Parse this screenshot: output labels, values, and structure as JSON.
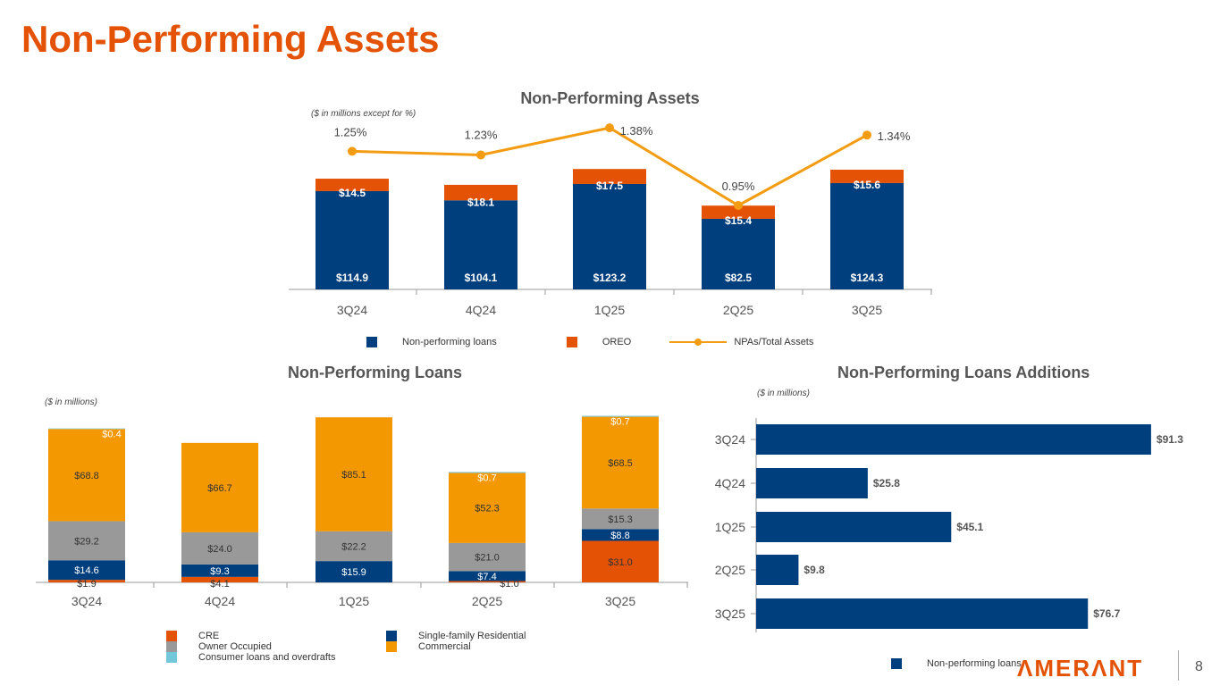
{
  "page_title": "Non-Performing Assets",
  "page_number": "8",
  "logo": "AMERANT",
  "colors": {
    "npl": "#003f7d",
    "oreo": "#e35205",
    "line": "#f39c12",
    "owner": "#999999",
    "commercial": "#f39800",
    "consumer": "#74c6d9",
    "cre": "#e35205",
    "sfr": "#003f7d"
  },
  "chart_data": [
    {
      "type": "bar",
      "title": "Non-Performing Assets",
      "note": "($ in millions except for %)",
      "stacked": true,
      "categories": [
        "3Q24",
        "4Q24",
        "1Q25",
        "2Q25",
        "3Q25"
      ],
      "series": [
        {
          "name": "Non-performing loans",
          "values": [
            114.9,
            104.1,
            123.2,
            82.5,
            124.3
          ],
          "labels": [
            "$114.9",
            "$104.1",
            "$123.2",
            "$82.5",
            "$124.3"
          ]
        },
        {
          "name": "OREO",
          "values": [
            14.5,
            18.1,
            17.5,
            15.4,
            15.6
          ],
          "labels": [
            "$14.5",
            "$18.1",
            "$17.5",
            "$15.4",
            "$15.6"
          ]
        }
      ],
      "line": {
        "name": "NPAs/Total Assets",
        "values": [
          1.25,
          1.23,
          1.38,
          0.95,
          1.34
        ],
        "labels": [
          "1.25%",
          "1.23%",
          "1.38%",
          "0.95%",
          "1.34%"
        ]
      }
    },
    {
      "type": "bar",
      "title": "Non-Performing Loans",
      "note": "($ in millions)",
      "stacked": true,
      "categories": [
        "3Q24",
        "4Q24",
        "1Q25",
        "2Q25",
        "3Q25"
      ],
      "series": [
        {
          "name": "CRE",
          "values": [
            1.9,
            4.1,
            0,
            1.0,
            31.0
          ],
          "labels": [
            "$1.9",
            "$4.1",
            "",
            "$1.0",
            "$31.0"
          ]
        },
        {
          "name": "Single-family Residential",
          "values": [
            14.6,
            9.3,
            15.9,
            7.4,
            8.8
          ],
          "labels": [
            "$14.6",
            "$9.3",
            "$15.9",
            "$7.4",
            "$8.8"
          ]
        },
        {
          "name": "Owner Occupied",
          "values": [
            29.2,
            24.0,
            22.2,
            21.0,
            15.3
          ],
          "labels": [
            "$29.2",
            "$24.0",
            "$22.2",
            "$21.0",
            "$15.3"
          ]
        },
        {
          "name": "Commercial",
          "values": [
            68.8,
            66.7,
            85.1,
            52.3,
            68.5
          ],
          "labels": [
            "$68.8",
            "$66.7",
            "$85.1",
            "$52.3",
            "$68.5"
          ]
        },
        {
          "name": "Consumer loans and overdrafts",
          "values": [
            0.4,
            0,
            0,
            0.7,
            0.7
          ],
          "labels": [
            "$0.4",
            "",
            "",
            "$0.7",
            "$0.7"
          ]
        }
      ]
    },
    {
      "type": "bar",
      "orientation": "horizontal",
      "title": "Non-Performing Loans Additions",
      "note": "($ in millions)",
      "categories": [
        "3Q24",
        "4Q24",
        "1Q25",
        "2Q25",
        "3Q25"
      ],
      "series": [
        {
          "name": "Non-performing loans",
          "values": [
            91.3,
            25.8,
            45.1,
            9.8,
            76.7
          ],
          "labels": [
            "$91.3",
            "$25.8",
            "$45.1",
            "$9.8",
            "$76.7"
          ]
        }
      ]
    }
  ]
}
